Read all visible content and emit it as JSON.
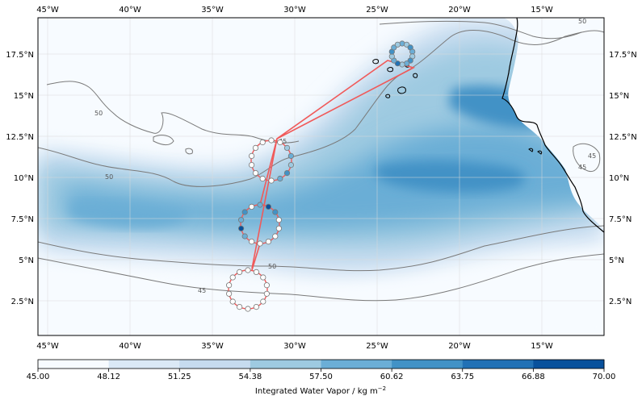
{
  "map": {
    "lon_ticks": [
      "45°W",
      "40°W",
      "35°W",
      "30°W",
      "25°W",
      "20°W",
      "15°W"
    ],
    "lat_ticks": [
      "17.5°N",
      "15°N",
      "12.5°N",
      "10°N",
      "7.5°N",
      "5°N",
      "2.5°N"
    ],
    "contour_labels": {
      "a": "50",
      "b": "45",
      "c": "45",
      "d": "50",
      "e": "50",
      "f": "45",
      "g": "50",
      "h": "45"
    },
    "colors": {
      "track": "#f05a5a",
      "coast": "#000000",
      "contour": "#7a7a7a",
      "sonde_outline": "#cc4444"
    }
  },
  "colorbar": {
    "ticks": [
      "45.00",
      "48.12",
      "51.25",
      "54.38",
      "57.50",
      "60.62",
      "63.75",
      "66.88",
      "70.00"
    ],
    "label_main": "Integrated Water Vapor / kg m",
    "label_sup": "−2",
    "colors": [
      "#f7fbff",
      "#dbe9f6",
      "#c6dbef",
      "#9ecae1",
      "#6baed6",
      "#4292c6",
      "#2171b5",
      "#08519c"
    ]
  }
}
